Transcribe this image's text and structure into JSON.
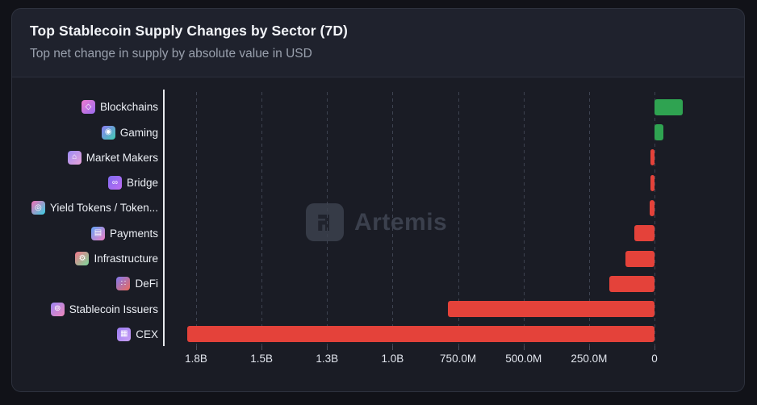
{
  "card": {
    "title": "Top Stablecoin Supply Changes by Sector (7D)",
    "subtitle": "Top net change in supply by absolute value in USD"
  },
  "watermark": {
    "brand": "Artemis"
  },
  "chart_data": {
    "type": "bar",
    "orientation": "horizontal",
    "title": "Top Stablecoin Supply Changes by Sector (7D)",
    "subtitle": "Top net change in supply by absolute value in USD",
    "value_unit": "USD",
    "legend": "none",
    "grid": "dashed-vertical",
    "axis_note": "x axis shows absolute net change decreasing left-to-right toward 0; green bars extend right of 0 (increases), red bars extend left (decreases)",
    "categories": [
      "Blockchains",
      "Gaming",
      "Market Makers",
      "Bridge",
      "Yield Tokens / Token...",
      "Payments",
      "Infrastructure",
      "DeFi",
      "Stablecoin Issuers",
      "CEX"
    ],
    "series": [
      {
        "name": "7D net supply change",
        "values_usd_millions": [
          108,
          34,
          -14,
          -15,
          -18,
          -77,
          -110,
          -172,
          -790,
          -1784
        ]
      }
    ],
    "x_ticks": [
      {
        "label": "1.8B",
        "abs_value_usd_millions": 1750
      },
      {
        "label": "1.5B",
        "abs_value_usd_millions": 1500
      },
      {
        "label": "1.3B",
        "abs_value_usd_millions": 1250
      },
      {
        "label": "1.0B",
        "abs_value_usd_millions": 1000
      },
      {
        "label": "750.0M",
        "abs_value_usd_millions": 750
      },
      {
        "label": "500.0M",
        "abs_value_usd_millions": 500
      },
      {
        "label": "250.0M",
        "abs_value_usd_millions": 250
      },
      {
        "label": "0",
        "abs_value_usd_millions": 0
      }
    ],
    "xlim_usd_millions": [
      -1876,
      345
    ],
    "colors": {
      "increase": "#2fa351",
      "decrease": "#e4423a"
    },
    "category_icons": [
      {
        "name": "blockchains-icon",
        "glyph": "◇",
        "gradient": [
          "#ef7bd0",
          "#9a6cf0"
        ]
      },
      {
        "name": "gaming-icon",
        "glyph": "◉",
        "gradient": [
          "#8d7bf3",
          "#3fceb0"
        ]
      },
      {
        "name": "market-makers-icon",
        "glyph": "⌂",
        "gradient": [
          "#9b8bf5",
          "#e9a3d8"
        ]
      },
      {
        "name": "bridge-icon",
        "glyph": "∞",
        "gradient": [
          "#7d6bf0",
          "#c06cf2"
        ]
      },
      {
        "name": "yield-tokens-icon",
        "glyph": "◎",
        "gradient": [
          "#f36fb5",
          "#37cfe3"
        ]
      },
      {
        "name": "payments-icon",
        "glyph": "▤",
        "gradient": [
          "#62a3f7",
          "#ef7fc3"
        ]
      },
      {
        "name": "infrastructure-icon",
        "glyph": "⚙",
        "gradient": [
          "#f2758b",
          "#7bd99b"
        ]
      },
      {
        "name": "defi-icon",
        "glyph": "∷",
        "gradient": [
          "#8079f2",
          "#ee6a57"
        ]
      },
      {
        "name": "stablecoin-issuers-icon",
        "glyph": "⊚",
        "gradient": [
          "#9c86f5",
          "#ef87b9"
        ]
      },
      {
        "name": "cex-icon",
        "glyph": "▦",
        "gradient": [
          "#9a7bf2",
          "#caa0f5"
        ]
      }
    ]
  }
}
